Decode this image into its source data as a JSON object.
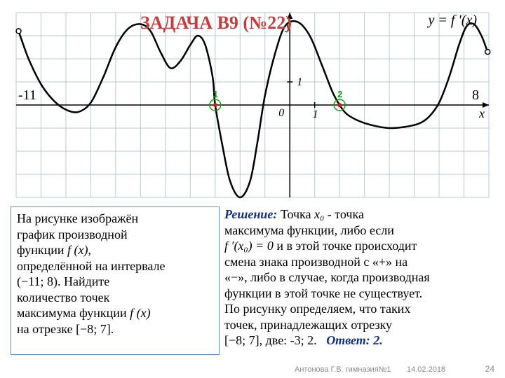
{
  "title": "ЗАДАЧА В9 (№22)",
  "equation": "y = f ′(x)",
  "graph": {
    "xmin": -11,
    "xmax": 8,
    "ymin": -4,
    "ymax": 4,
    "grid_color": "#b9c9d3",
    "axis_color": "#000000",
    "curve_color": "#000000",
    "curve_width": 2.5,
    "background": "#ffffff",
    "label_x": "x",
    "label_y": "y",
    "label_0": "0",
    "label_1y": "1",
    "label_1x": "1",
    "left_bound_label": "-11",
    "right_bound_label": "8",
    "endpoint_open_radius": 3.5,
    "markers": [
      {
        "x": -3,
        "y": 0,
        "label": "1",
        "color": "#c02020",
        "ring": "#1a9a1a"
      },
      {
        "x": 2,
        "y": 0,
        "label": "2",
        "color": "#c02020",
        "ring": "#1a9a1a"
      }
    ],
    "curve_points": [
      [
        -10.9,
        3.2
      ],
      [
        -10.5,
        2.0
      ],
      [
        -10,
        0.9
      ],
      [
        -9.5,
        0.2
      ],
      [
        -9,
        -0.2
      ],
      [
        -8.5,
        -0.3
      ],
      [
        -8,
        0.1
      ],
      [
        -7.5,
        1.2
      ],
      [
        -7,
        2.5
      ],
      [
        -6.5,
        3.3
      ],
      [
        -6,
        3.5
      ],
      [
        -5.6,
        3.2
      ],
      [
        -5.2,
        2.3
      ],
      [
        -4.8,
        1.6
      ],
      [
        -4.4,
        1.9
      ],
      [
        -4,
        2.6
      ],
      [
        -3.7,
        3.0
      ],
      [
        -3.4,
        2.6
      ],
      [
        -3.1,
        1.2
      ],
      [
        -3,
        0
      ],
      [
        -2.7,
        -1.8
      ],
      [
        -2.4,
        -3.3
      ],
      [
        -2,
        -4.0
      ],
      [
        -1.6,
        -3.3
      ],
      [
        -1.3,
        -1.6
      ],
      [
        -1,
        0.4
      ],
      [
        -0.6,
        2.2
      ],
      [
        -0.2,
        3.4
      ],
      [
        0.3,
        3.6
      ],
      [
        0.8,
        3.0
      ],
      [
        1.3,
        1.7
      ],
      [
        1.7,
        0.6
      ],
      [
        2,
        0
      ],
      [
        2.3,
        -0.4
      ],
      [
        2.8,
        -0.7
      ],
      [
        3.4,
        -0.9
      ],
      [
        4,
        -1.0
      ],
      [
        4.6,
        -0.95
      ],
      [
        5.2,
        -0.8
      ],
      [
        5.6,
        -0.5
      ],
      [
        6,
        0.1
      ],
      [
        6.4,
        1.2
      ],
      [
        6.8,
        2.6
      ],
      [
        7.1,
        3.4
      ],
      [
        7.4,
        3.5
      ],
      [
        7.7,
        3.0
      ],
      [
        7.95,
        2.3
      ]
    ]
  },
  "problem": {
    "p1a": "На рисунке изображён",
    "p1b": "график производной",
    "p1c": "функции ",
    "fx": "f (x)",
    "p1d": ",",
    "p2a": "определённой на интервале",
    "interval": "(−11; 8)",
    "p2b": ". Найдите",
    "p3a": "количество точек",
    "p3b": "максимума функции ",
    "fx2": "f (x)",
    "p4a": "на отрезке ",
    "segment": "[−8; 7]",
    "p4b": "."
  },
  "solution": {
    "label": "Решение:",
    "s1": " Точка ",
    "x0": "x₀",
    "s2": " - точка",
    "s3": "максимума функции, либо если",
    "eq": "f ′(x₀) = 0",
    "s4": " и в этой точке происходит",
    "s5": "смена знака производной с «+» на",
    "s6": "«−», либо в случае, когда производная",
    "s7": "функции в этой точке не существует.",
    "s8": "По рисунку определяем, что таких",
    "s9": "точек, принадлежащих отрезку",
    "seg": "[−8; 7]",
    "s10": ", две: -3; 2.",
    "answer_label": "Ответ: 2."
  },
  "footer": {
    "author": "Антонова Г.В. гимназия№1",
    "date": "14.02.2018",
    "page": "24"
  }
}
